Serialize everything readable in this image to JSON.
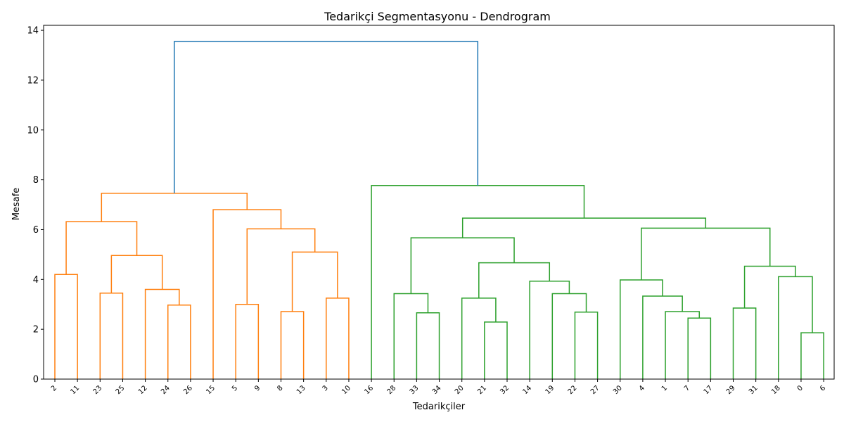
{
  "chart_data": {
    "type": "dendrogram",
    "title": "Tedarikçi Segmentasyonu - Dendrogram",
    "xlabel": "Tedarikçiler",
    "ylabel": "Mesafe",
    "ylim": [
      0,
      14.2
    ],
    "yticks": [
      0,
      2,
      4,
      6,
      8,
      10,
      12,
      14
    ],
    "leaves": [
      "2",
      "11",
      "23",
      "25",
      "12",
      "24",
      "26",
      "15",
      "5",
      "9",
      "8",
      "13",
      "3",
      "10",
      "16",
      "28",
      "33",
      "34",
      "20",
      "21",
      "32",
      "14",
      "19",
      "22",
      "27",
      "30",
      "4",
      "1",
      "7",
      "17",
      "29",
      "31",
      "18",
      "0",
      "6"
    ],
    "colors": {
      "cluster_1": "#ff7f0e",
      "cluster_2": "#2ca02c",
      "root": "#1f77b4"
    },
    "links": [
      {
        "left": 0,
        "right": 1,
        "height": 4.2,
        "color": "cluster_1"
      },
      {
        "left": 2,
        "right": 3,
        "height": 3.45,
        "color": "cluster_1"
      },
      {
        "left": 5,
        "right": 6,
        "height": 2.97,
        "color": "cluster_1"
      },
      {
        "left": 4,
        "right": "n2",
        "height": 3.6,
        "color": "cluster_1"
      },
      {
        "left": "n1",
        "right": "n3",
        "height": 4.96,
        "color": "cluster_1"
      },
      {
        "left": "n0",
        "right": "n4",
        "height": 6.32,
        "color": "cluster_1"
      },
      {
        "left": 8,
        "right": 9,
        "height": 3.0,
        "color": "cluster_1"
      },
      {
        "left": 10,
        "right": 11,
        "height": 2.71,
        "color": "cluster_1"
      },
      {
        "left": 12,
        "right": 13,
        "height": 3.25,
        "color": "cluster_1"
      },
      {
        "left": "n7",
        "right": "n8",
        "height": 5.1,
        "color": "cluster_1"
      },
      {
        "left": "n6",
        "right": "n9",
        "height": 6.03,
        "color": "cluster_1"
      },
      {
        "left": 7,
        "right": "n10",
        "height": 6.8,
        "color": "cluster_1"
      },
      {
        "left": "n5",
        "right": "n11",
        "height": 7.46,
        "color": "cluster_1"
      },
      {
        "left": 16,
        "right": 17,
        "height": 2.66,
        "color": "cluster_2"
      },
      {
        "left": 15,
        "right": "n13",
        "height": 3.43,
        "color": "cluster_2"
      },
      {
        "left": 19,
        "right": 20,
        "height": 2.29,
        "color": "cluster_2"
      },
      {
        "left": 18,
        "right": "n15",
        "height": 3.25,
        "color": "cluster_2"
      },
      {
        "left": 23,
        "right": 24,
        "height": 2.69,
        "color": "cluster_2"
      },
      {
        "left": 22,
        "right": "n17",
        "height": 3.43,
        "color": "cluster_2"
      },
      {
        "left": 21,
        "right": "n18",
        "height": 3.93,
        "color": "cluster_2"
      },
      {
        "left": "n16",
        "right": "n19",
        "height": 4.67,
        "color": "cluster_2"
      },
      {
        "left": "n14",
        "right": "n20",
        "height": 5.67,
        "color": "cluster_2"
      },
      {
        "left": 28,
        "right": 29,
        "height": 2.45,
        "color": "cluster_2"
      },
      {
        "left": 27,
        "right": "n22",
        "height": 2.71,
        "color": "cluster_2"
      },
      {
        "left": 26,
        "right": "n23",
        "height": 3.33,
        "color": "cluster_2"
      },
      {
        "left": 25,
        "right": "n24",
        "height": 3.98,
        "color": "cluster_2"
      },
      {
        "left": 30,
        "right": 31,
        "height": 2.85,
        "color": "cluster_2"
      },
      {
        "left": 33,
        "right": 34,
        "height": 1.86,
        "color": "cluster_2"
      },
      {
        "left": 32,
        "right": "n27",
        "height": 4.11,
        "color": "cluster_2"
      },
      {
        "left": "n26",
        "right": "n28",
        "height": 4.53,
        "color": "cluster_2"
      },
      {
        "left": "n25",
        "right": "n29",
        "height": 6.06,
        "color": "cluster_2"
      },
      {
        "left": "n21",
        "right": "n30",
        "height": 6.46,
        "color": "cluster_2"
      },
      {
        "left": 14,
        "right": "n31",
        "height": 7.77,
        "color": "cluster_2"
      },
      {
        "left": "n12",
        "right": "n32",
        "height": 13.55,
        "color": "root"
      }
    ],
    "grid": false
  }
}
